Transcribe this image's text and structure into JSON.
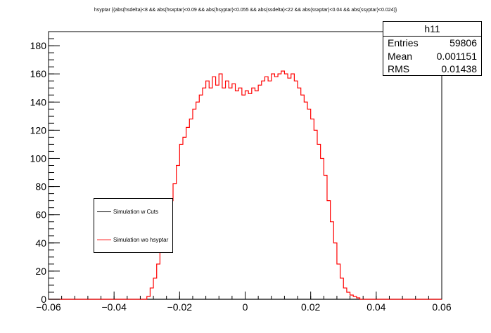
{
  "chart_data": {
    "type": "histogram",
    "title": "hsyptar {(abs(hsdelta)<8 && abs(hsxptar)<0.09 && abs(hsyptar)<0.055 && abs(ssdelta)<22 && abs(ssxptar)<0.04 && abs(ssyptar)<0.024)}",
    "xlabel": "",
    "ylabel": "",
    "xlim": [
      -0.06,
      0.06
    ],
    "ylim": [
      0,
      190
    ],
    "x_ticks": [
      "−0.06",
      "−0.04",
      "−0.02",
      "0",
      "0.02",
      "0.04",
      "0.06"
    ],
    "x_tick_values": [
      -0.06,
      -0.04,
      -0.02,
      0,
      0.02,
      0.04,
      0.06
    ],
    "y_ticks": [
      "0",
      "20",
      "40",
      "60",
      "80",
      "100",
      "120",
      "140",
      "160",
      "180"
    ],
    "y_tick_values": [
      0,
      20,
      40,
      60,
      80,
      100,
      120,
      140,
      160,
      180
    ],
    "grid": false,
    "legend_position": "left-middle",
    "series": [
      {
        "name": "Simulation w Cuts",
        "color": "#000000",
        "x": [
          -0.06,
          0.06
        ],
        "y": [
          0,
          0
        ]
      },
      {
        "name": "Simulation wo hsyptar",
        "color": "#ff0000",
        "x": [
          -0.032,
          -0.03,
          -0.029,
          -0.028,
          -0.027,
          -0.026,
          -0.025,
          -0.024,
          -0.023,
          -0.022,
          -0.021,
          -0.02,
          -0.019,
          -0.018,
          -0.017,
          -0.016,
          -0.015,
          -0.014,
          -0.013,
          -0.012,
          -0.011,
          -0.01,
          -0.009,
          -0.008,
          -0.007,
          -0.006,
          -0.005,
          -0.004,
          -0.003,
          -0.002,
          -0.001,
          0.0,
          0.001,
          0.002,
          0.003,
          0.004,
          0.005,
          0.006,
          0.007,
          0.008,
          0.009,
          0.01,
          0.011,
          0.012,
          0.013,
          0.014,
          0.015,
          0.016,
          0.017,
          0.018,
          0.019,
          0.02,
          0.021,
          0.022,
          0.023,
          0.024,
          0.025,
          0.026,
          0.027,
          0.028,
          0.029,
          0.03,
          0.031,
          0.032,
          0.033,
          0.034,
          0.035,
          0.036
        ],
        "y": [
          0,
          2,
          8,
          15,
          25,
          35,
          45,
          60,
          70,
          82,
          95,
          110,
          115,
          122,
          128,
          135,
          140,
          145,
          150,
          155,
          150,
          158,
          152,
          160,
          150,
          155,
          150,
          153,
          148,
          150,
          145,
          148,
          146,
          150,
          148,
          152,
          155,
          158,
          155,
          160,
          158,
          160,
          162,
          160,
          157,
          160,
          155,
          150,
          145,
          140,
          135,
          128,
          120,
          110,
          100,
          88,
          70,
          55,
          40,
          25,
          15,
          8,
          5,
          3,
          2,
          1,
          0,
          0
        ]
      }
    ]
  },
  "stats": {
    "name": "h11",
    "entries_label": "Entries",
    "entries_value": "59806",
    "mean_label": "Mean",
    "mean_value": "0.001151",
    "rms_label": "RMS",
    "rms_value": "0.01438"
  }
}
